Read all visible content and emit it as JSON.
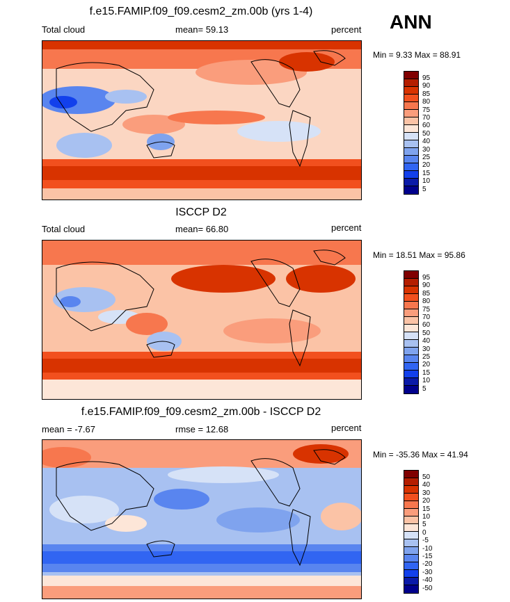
{
  "season": "ANN",
  "panels": [
    {
      "title": "f.e15.FAMIP.f09_f09.cesm2_zm.00b (yrs 1-4)",
      "left_label": "Total cloud",
      "mid_label": "mean=  59.13",
      "right_label": "percent",
      "minmax": "Min =   9.33 Max =  88.91",
      "colorbar_levels": [
        "95",
        "90",
        "85",
        "80",
        "75",
        "70",
        "60",
        "50",
        "40",
        "30",
        "25",
        "20",
        "15",
        "10",
        "5"
      ],
      "colorbar_colors": [
        "#800000",
        "#b41e00",
        "#d83300",
        "#f2501e",
        "#f7774e",
        "#fa9d7c",
        "#fbc3a6",
        "#fde6d8",
        "#d6e2f7",
        "#a8c1f1",
        "#7fa3ee",
        "#5985ef",
        "#3165f2",
        "#1240ec",
        "#0a1aa8",
        "#00008c"
      ]
    },
    {
      "title": "ISCCP D2",
      "left_label": "Total cloud",
      "mid_label": "mean=  66.80",
      "right_label": "percent",
      "minmax": "Min =  18.51 Max =  95.86",
      "colorbar_levels": [
        "95",
        "90",
        "85",
        "80",
        "75",
        "70",
        "60",
        "50",
        "40",
        "30",
        "25",
        "20",
        "15",
        "10",
        "5"
      ],
      "colorbar_colors": [
        "#800000",
        "#b41e00",
        "#d83300",
        "#f2501e",
        "#f7774e",
        "#fa9d7c",
        "#fbc3a6",
        "#fde6d8",
        "#d6e2f7",
        "#a8c1f1",
        "#7fa3ee",
        "#5985ef",
        "#3165f2",
        "#1240ec",
        "#0a1aa8",
        "#00008c"
      ]
    },
    {
      "title": "f.e15.FAMIP.f09_f09.cesm2_zm.00b - ISCCP D2",
      "left_label": "mean =  -7.67",
      "mid_label": "rmse =  12.68",
      "right_label": "percent",
      "minmax": "Min = -35.36 Max =  41.94",
      "colorbar_levels": [
        "50",
        "40",
        "30",
        "20",
        "15",
        "10",
        "5",
        "0",
        "-5",
        "-10",
        "-15",
        "-20",
        "-30",
        "-40",
        "-50"
      ],
      "colorbar_colors": [
        "#800000",
        "#b41e00",
        "#d83300",
        "#f2501e",
        "#f7774e",
        "#fa9d7c",
        "#fbc3a6",
        "#fde6d8",
        "#d6e2f7",
        "#a8c1f1",
        "#7fa3ee",
        "#5985ef",
        "#3165f2",
        "#1240ec",
        "#0a1aa8",
        "#00008c"
      ]
    }
  ]
}
